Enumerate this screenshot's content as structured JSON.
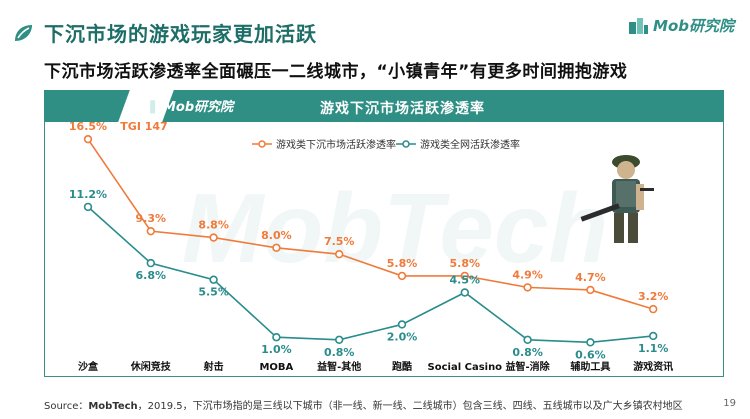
{
  "header": {
    "title": "下沉市场的游戏玩家更加活跃",
    "brand": "Mob研究院"
  },
  "subtitle": "下沉市场活跃渗透率全面碾压一二线城市，“小镇青年”有更多时间拥抱游戏",
  "chart_header": {
    "brand": "Mob研究院",
    "title": "游戏下沉市场活跃渗透率"
  },
  "watermark": "MobTech",
  "colors": {
    "accent": "#2f8f85",
    "series_orange": "#f07a3a",
    "series_teal": "#2a8c8c",
    "title_teal": "#1e6e68"
  },
  "chart_data": {
    "type": "line",
    "title": "游戏下沉市场活跃渗透率",
    "categories": [
      "沙盒",
      "休闲竞技",
      "射击",
      "MOBA",
      "益智-其他",
      "跑酷",
      "Social Casino",
      "益智-消除",
      "辅助工具",
      "游戏资讯"
    ],
    "series": [
      {
        "name": "游戏类下沉市场活跃渗透率",
        "color": "#f07a3a",
        "values": [
          16.5,
          9.3,
          8.8,
          8.0,
          7.5,
          5.8,
          5.8,
          4.9,
          4.7,
          3.2
        ],
        "labels": [
          "16.5%",
          "9.3%",
          "8.8%",
          "8.0%",
          "7.5%",
          "5.8%",
          "5.8%",
          "4.9%",
          "4.7%",
          "3.2%"
        ]
      },
      {
        "name": "游戏类全网活跃渗透率",
        "color": "#2a8c8c",
        "values": [
          11.2,
          6.8,
          5.5,
          1.0,
          0.8,
          2.0,
          4.5,
          0.8,
          0.6,
          1.1
        ],
        "labels": [
          "11.2%",
          "6.8%",
          "5.5%",
          "1.0%",
          "0.8%",
          "2.0%",
          "4.5%",
          "0.8%",
          "0.6%",
          "1.1%"
        ]
      }
    ],
    "annotations": [
      {
        "text": "TGI 147",
        "category": "沙盒"
      }
    ],
    "xlabel": "",
    "ylabel": "",
    "ylim": [
      0,
      18
    ],
    "grid": false,
    "legend": "top-center"
  },
  "footer": {
    "prefix": "Source：",
    "source": "MobTech",
    "text": "，2019.5，下沉市场指的是三线以下城市（非一线、新一线、二线城市）包含三线、四线、五线城市以及广大乡镇农村地区"
  },
  "page_number": "19"
}
